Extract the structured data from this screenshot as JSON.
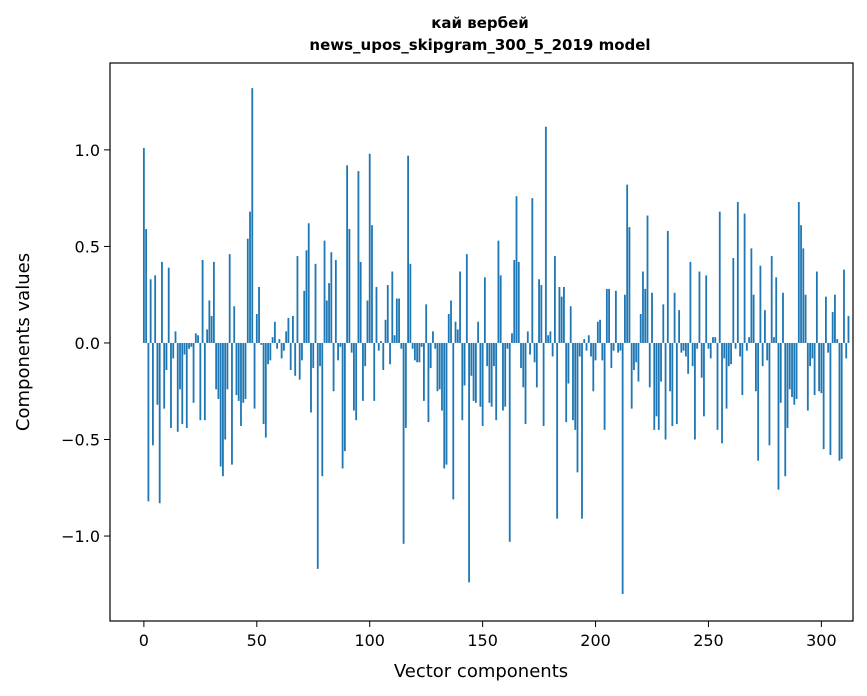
{
  "chart_data": {
    "type": "bar",
    "title": "кай вербей",
    "subtitle": "news_upos_skipgram_300_5_2019 model",
    "xlabel": "Vector components",
    "ylabel": "Components values",
    "xlim": [
      -15,
      314
    ],
    "ylim": [
      -1.44,
      1.45
    ],
    "x_ticks": [
      0,
      50,
      100,
      150,
      200,
      250,
      300
    ],
    "x_tick_labels": [
      "0",
      "50",
      "100",
      "150",
      "200",
      "250",
      "300"
    ],
    "y_ticks": [
      -1.0,
      -0.5,
      0.0,
      0.5,
      1.0
    ],
    "y_tick_labels": [
      "−1.0",
      "−0.5",
      "0.0",
      "0.5",
      "1.0"
    ],
    "grid": false,
    "bar_color": "#1f77b4",
    "series": [
      {
        "values": [
          1.01,
          0.59,
          -0.82,
          0.33,
          -0.53,
          0.35,
          -0.32,
          -0.83,
          0.42,
          -0.34,
          -0.14,
          0.39,
          -0.44,
          -0.08,
          0.06,
          -0.46,
          -0.24,
          -0.42,
          -0.06,
          -0.44,
          -0.03,
          -0.02,
          -0.31,
          0.05,
          0.04,
          -0.4,
          0.43,
          -0.4,
          0.07,
          0.22,
          0.14,
          0.42,
          -0.24,
          -0.29,
          -0.64,
          -0.69,
          -0.5,
          -0.24,
          0.46,
          -0.63,
          0.19,
          -0.27,
          -0.3,
          -0.43,
          -0.31,
          -0.29,
          0.54,
          0.68,
          1.32,
          -0.34,
          0.15,
          0.29,
          -0.01,
          -0.42,
          -0.49,
          -0.11,
          -0.09,
          0.03,
          0.11,
          -0.03,
          0.02,
          -0.08,
          -0.04,
          0.06,
          0.13,
          -0.14,
          0.14,
          -0.17,
          0.45,
          -0.19,
          -0.09,
          0.27,
          0.48,
          0.62,
          -0.36,
          -0.13,
          0.41,
          -1.17,
          -0.12,
          -0.69,
          0.53,
          0.22,
          0.31,
          0.47,
          -0.25,
          0.43,
          -0.09,
          -0.02,
          -0.65,
          -0.56,
          0.92,
          0.59,
          -0.05,
          -0.35,
          -0.4,
          0.89,
          0.42,
          -0.3,
          -0.12,
          0.22,
          0.98,
          0.61,
          -0.3,
          0.29,
          -0.04,
          0.01,
          -0.14,
          0.12,
          0.3,
          -0.11,
          0.37,
          0.04,
          0.23,
          0.23,
          -0.03,
          -1.04,
          -0.44,
          0.97,
          0.41,
          -0.03,
          -0.09,
          -0.1,
          -0.1,
          -0.02,
          -0.3,
          0.2,
          -0.41,
          -0.13,
          0.06,
          -0.03,
          -0.25,
          -0.24,
          -0.35,
          -0.65,
          -0.63,
          0.15,
          0.22,
          -0.81,
          0.11,
          0.07,
          0.37,
          -0.4,
          -0.22,
          0.46,
          -1.24,
          -0.17,
          -0.3,
          -0.31,
          0.11,
          -0.33,
          -0.43,
          0.34,
          -0.12,
          -0.31,
          -0.33,
          -0.12,
          -0.4,
          0.53,
          0.35,
          -0.35,
          -0.33,
          -0.03,
          -1.03,
          0.05,
          0.43,
          0.76,
          0.42,
          -0.13,
          -0.23,
          -0.42,
          0.06,
          -0.06,
          0.75,
          -0.1,
          -0.23,
          0.33,
          0.3,
          -0.43,
          1.12,
          0.04,
          0.06,
          -0.07,
          0.45,
          -0.91,
          0.29,
          0.24,
          0.29,
          -0.41,
          -0.21,
          0.19,
          -0.4,
          -0.45,
          -0.67,
          -0.07,
          -0.91,
          0.02,
          -0.04,
          0.04,
          -0.07,
          -0.25,
          -0.09,
          0.11,
          0.12,
          -0.09,
          -0.45,
          0.28,
          0.28,
          -0.13,
          -0.04,
          0.27,
          -0.05,
          -0.04,
          -1.3,
          0.25,
          0.82,
          0.6,
          -0.34,
          -0.14,
          -0.1,
          -0.2,
          0.15,
          0.37,
          0.28,
          0.66,
          -0.23,
          0.26,
          -0.45,
          -0.38,
          -0.45,
          -0.2,
          0.2,
          -0.5,
          0.58,
          -0.25,
          -0.43,
          0.26,
          -0.42,
          0.17,
          -0.05,
          -0.04,
          -0.07,
          -0.16,
          0.42,
          -0.12,
          -0.5,
          -0.03,
          0.37,
          -0.18,
          -0.38,
          0.35,
          -0.03,
          -0.08,
          0.03,
          0.03,
          -0.45,
          0.68,
          -0.52,
          -0.08,
          -0.34,
          -0.12,
          -0.11,
          0.44,
          -0.03,
          0.73,
          -0.07,
          -0.27,
          0.67,
          -0.04,
          0.03,
          0.49,
          0.25,
          -0.25,
          -0.61,
          0.4,
          -0.12,
          0.17,
          -0.09,
          -0.53,
          0.45,
          0.03,
          0.34,
          -0.76,
          -0.31,
          0.26,
          -0.69,
          -0.44,
          -0.24,
          -0.28,
          -0.32,
          -0.29,
          0.73,
          0.61,
          0.49,
          0.25,
          -0.35,
          -0.12,
          -0.08,
          -0.27,
          0.37,
          -0.25,
          -0.26,
          -0.55,
          0.24,
          -0.05,
          -0.58,
          0.16,
          0.25,
          0.02,
          -0.61,
          -0.6,
          0.38,
          -0.08,
          0.14
        ]
      }
    ]
  }
}
